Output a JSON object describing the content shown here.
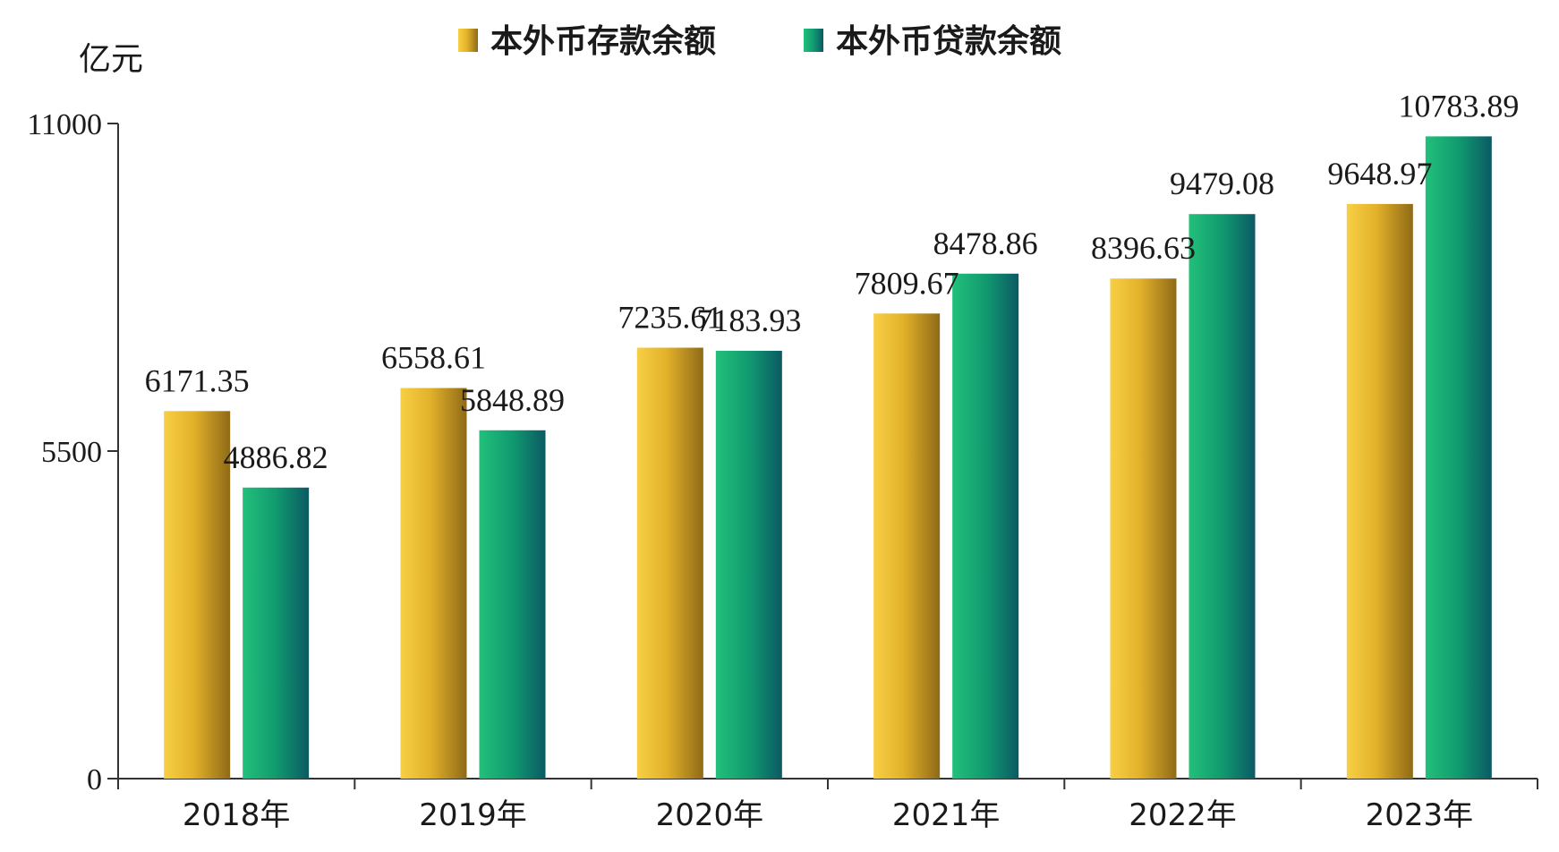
{
  "chart_data": {
    "type": "bar",
    "unit_label": "亿元",
    "categories": [
      "2018年",
      "2019年",
      "2020年",
      "2021年",
      "2022年",
      "2023年"
    ],
    "series": [
      {
        "name": "本外币存款余额",
        "values": [
          6171.35,
          6558.61,
          7235.61,
          7809.67,
          8396.63,
          9648.97
        ],
        "color": "#e8b92c"
      },
      {
        "name": "本外币贷款余额",
        "values": [
          4886.82,
          5848.89,
          7183.93,
          8478.86,
          9479.08,
          10783.89
        ],
        "color": "#1aa37a"
      }
    ],
    "yticks": [
      0,
      5500,
      11000
    ],
    "ylim": [
      0,
      11000
    ],
    "legend_position": "top-center",
    "grid": false
  }
}
